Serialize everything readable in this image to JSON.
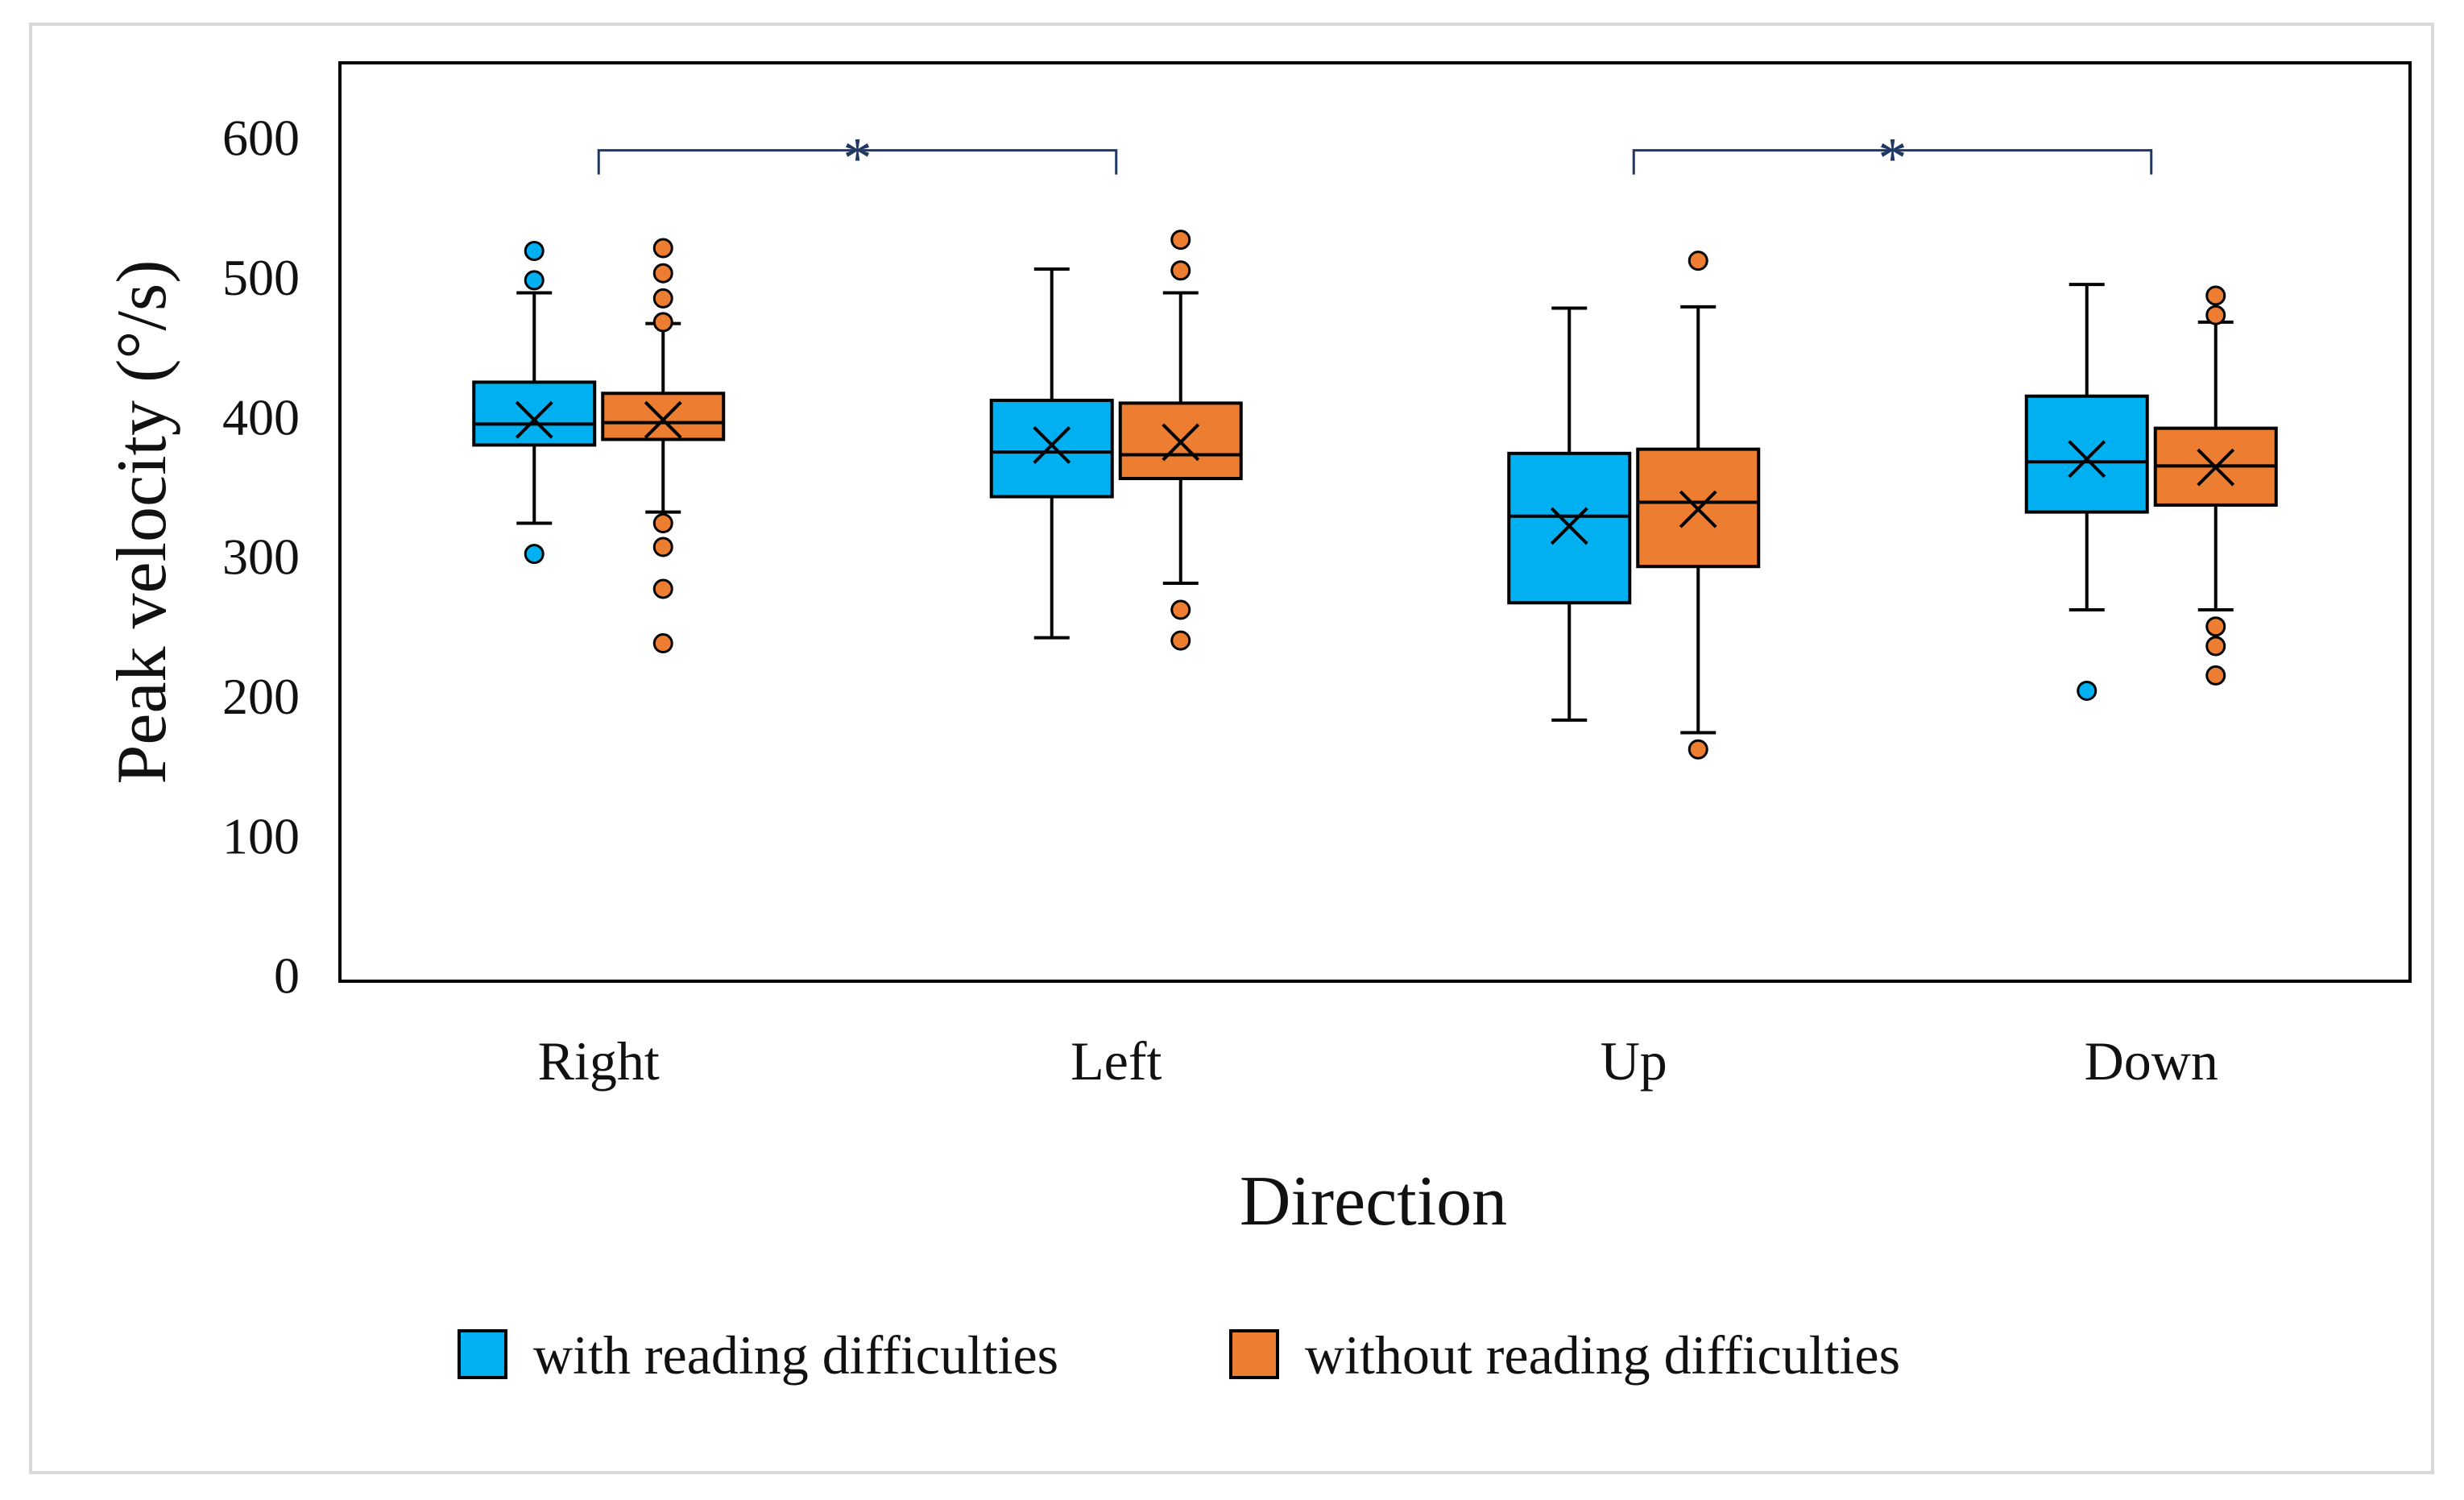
{
  "chart_data": {
    "type": "box",
    "title": "",
    "xlabel": "Direction",
    "ylabel": "Peak velocity (°/s)",
    "ylim": [
      0,
      650
    ],
    "yticks": [
      0,
      100,
      200,
      300,
      400,
      500,
      600
    ],
    "grid": false,
    "legend_position": "bottom",
    "categories": [
      "Right",
      "Left",
      "Up",
      "Down"
    ],
    "series": [
      {
        "name": "with reading difficulties",
        "color": "#00b0f0",
        "boxes": [
          {
            "whisker_low": 328,
            "q1": 384,
            "median": 399,
            "q3": 429,
            "whisker_high": 493,
            "mean": 402,
            "outliers": [
              306,
              502,
              523
            ]
          },
          {
            "whisker_low": 246,
            "q1": 347,
            "median": 379,
            "q3": 416,
            "whisker_high": 510,
            "mean": 384,
            "outliers": []
          },
          {
            "whisker_low": 187,
            "q1": 271,
            "median": 333,
            "q3": 378,
            "whisker_high": 482,
            "mean": 326,
            "outliers": []
          },
          {
            "whisker_low": 266,
            "q1": 336,
            "median": 372,
            "q3": 419,
            "whisker_high": 499,
            "mean": 374,
            "outliers": [
              208
            ]
          }
        ]
      },
      {
        "name": "without reading difficulties",
        "color": "#ed7d31",
        "boxes": [
          {
            "whisker_low": 336,
            "q1": 388,
            "median": 400,
            "q3": 421,
            "whisker_high": 471,
            "mean": 402,
            "outliers": [
              242,
              281,
              311,
              328,
              472,
              489,
              507,
              525
            ]
          },
          {
            "whisker_low": 285,
            "q1": 360,
            "median": 377,
            "q3": 414,
            "whisker_high": 493,
            "mean": 386,
            "outliers": [
              244,
              266,
              509,
              531
            ]
          },
          {
            "whisker_low": 178,
            "q1": 297,
            "median": 343,
            "q3": 381,
            "whisker_high": 483,
            "mean": 338,
            "outliers": [
              166,
              516
            ]
          },
          {
            "whisker_low": 266,
            "q1": 341,
            "median": 369,
            "q3": 396,
            "whisker_high": 472,
            "mean": 368,
            "outliers": [
              219,
              240,
              254,
              477,
              491
            ]
          }
        ]
      }
    ],
    "annotations": [
      {
        "text": "*",
        "from_category": "Right",
        "to_category": "Left",
        "y": 595,
        "color": "#1f3864"
      },
      {
        "text": "*",
        "from_category": "Up",
        "to_category": "Down",
        "y": 595,
        "color": "#1f3864"
      }
    ]
  }
}
